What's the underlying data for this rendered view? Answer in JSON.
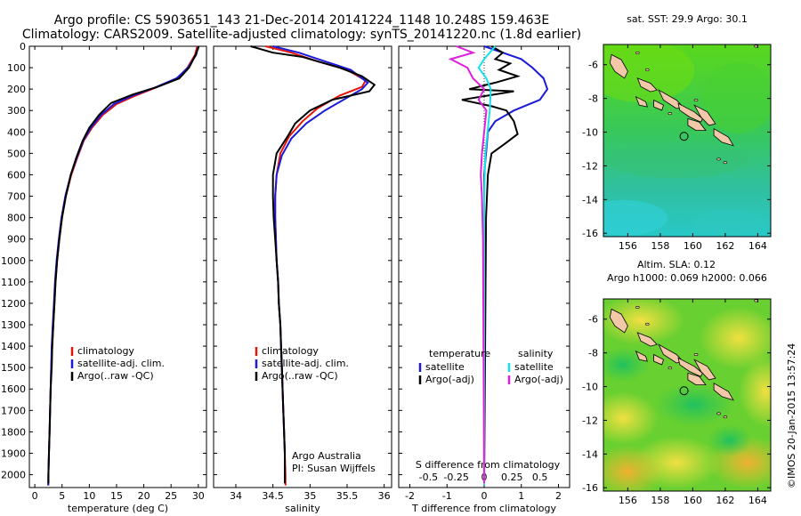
{
  "header": {
    "line1": "Argo profile: CS 5903651_143 21-Dec-2014 20141224_1148 10.248S 159.463E",
    "line2": "Climatology: CARS2009. Satellite-adjusted climatology: synTS_20141220.nc (1.8d earlier)"
  },
  "colors": {
    "climatology": "#e8140c",
    "satellite": "#1a1ad8",
    "argo": "#000000",
    "sat_diff": "#18e0e8",
    "argo_diff": "#e020e0"
  },
  "depth_axis": {
    "ticks": [
      0,
      100,
      200,
      300,
      400,
      500,
      600,
      700,
      800,
      900,
      1000,
      1100,
      1200,
      1300,
      1400,
      1500,
      1600,
      1700,
      1800,
      1900,
      2000
    ],
    "range": [
      0,
      2060
    ]
  },
  "chart_data": [
    {
      "type": "line",
      "id": "temperature",
      "xlabel": "temperature (deg C)",
      "ylabel": "",
      "xlim": [
        -1,
        31.5
      ],
      "xticks": [
        0,
        5,
        10,
        15,
        20,
        25,
        30
      ],
      "legend": [
        "climatology",
        "satellite-adj. clim.",
        "Argo(..raw -QC)"
      ],
      "series": [
        {
          "name": "climatology",
          "color": "#e8140c",
          "points": [
            [
              29.8,
              0
            ],
            [
              29.4,
              40
            ],
            [
              28.0,
              100
            ],
            [
              26.2,
              150
            ],
            [
              22.0,
              195
            ],
            [
              18.5,
              230
            ],
            [
              15.0,
              270
            ],
            [
              12.5,
              320
            ],
            [
              10.5,
              380
            ],
            [
              9.0,
              440
            ],
            [
              7.8,
              520
            ],
            [
              6.7,
              600
            ],
            [
              5.7,
              700
            ],
            [
              5.0,
              800
            ],
            [
              4.5,
              900
            ],
            [
              4.1,
              1000
            ],
            [
              3.8,
              1100
            ],
            [
              3.6,
              1200
            ],
            [
              3.4,
              1300
            ],
            [
              3.2,
              1400
            ],
            [
              3.0,
              1500
            ],
            [
              2.9,
              1600
            ],
            [
              2.8,
              1700
            ],
            [
              2.7,
              1800
            ],
            [
              2.6,
              1900
            ],
            [
              2.5,
              2000
            ],
            [
              2.5,
              2050
            ]
          ]
        },
        {
          "name": "satellite-adj. clim.",
          "color": "#1a1ad8",
          "points": [
            [
              30.0,
              0
            ],
            [
              29.6,
              40
            ],
            [
              28.1,
              100
            ],
            [
              26.0,
              150
            ],
            [
              21.8,
              195
            ],
            [
              18.0,
              230
            ],
            [
              14.5,
              270
            ],
            [
              12.2,
              320
            ],
            [
              10.3,
              380
            ],
            [
              8.9,
              440
            ],
            [
              7.7,
              520
            ],
            [
              6.6,
              600
            ],
            [
              5.6,
              700
            ],
            [
              4.9,
              800
            ],
            [
              4.4,
              900
            ],
            [
              4.0,
              1000
            ],
            [
              3.7,
              1100
            ],
            [
              3.5,
              1200
            ],
            [
              3.3,
              1300
            ],
            [
              3.1,
              1400
            ],
            [
              3.0,
              1500
            ],
            [
              2.9,
              1600
            ],
            [
              2.8,
              1700
            ],
            [
              2.7,
              1800
            ],
            [
              2.6,
              1900
            ],
            [
              2.5,
              2000
            ],
            [
              2.45,
              2050
            ]
          ]
        },
        {
          "name": "Argo(..raw -QC)",
          "color": "#000000",
          "points": [
            [
              30.1,
              0
            ],
            [
              29.5,
              40
            ],
            [
              28.3,
              100
            ],
            [
              26.5,
              150
            ],
            [
              22.5,
              190
            ],
            [
              18.0,
              225
            ],
            [
              14.0,
              265
            ],
            [
              11.8,
              320
            ],
            [
              10.0,
              380
            ],
            [
              8.8,
              440
            ],
            [
              7.6,
              520
            ],
            [
              6.6,
              600
            ],
            [
              5.7,
              700
            ],
            [
              5.0,
              800
            ],
            [
              4.5,
              900
            ],
            [
              4.1,
              1000
            ],
            [
              3.8,
              1100
            ],
            [
              3.6,
              1200
            ],
            [
              3.4,
              1300
            ],
            [
              3.2,
              1400
            ],
            [
              3.1,
              1500
            ],
            [
              2.9,
              1600
            ],
            [
              2.8,
              1700
            ],
            [
              2.7,
              1800
            ],
            [
              2.6,
              1900
            ],
            [
              2.5,
              2000
            ],
            [
              2.5,
              2040
            ]
          ]
        }
      ]
    },
    {
      "type": "line",
      "id": "salinity",
      "xlabel": "salinity",
      "xlim": [
        33.7,
        36.1
      ],
      "xticks": [
        34,
        34.5,
        35,
        35.5,
        36
      ],
      "xticklabels": [
        "34",
        "34.5",
        "35",
        "35.5",
        "36"
      ],
      "legend": [
        "climatology",
        "satellite-adj. clim.",
        "Argo(..raw -QC)"
      ],
      "annotation": [
        "Argo Australia",
        "PI: Susan Wijffels"
      ],
      "series": [
        {
          "name": "climatology",
          "color": "#e8140c",
          "points": [
            [
              34.4,
              0
            ],
            [
              34.75,
              30
            ],
            [
              35.1,
              70
            ],
            [
              35.5,
              110
            ],
            [
              35.75,
              160
            ],
            [
              35.7,
              190
            ],
            [
              35.4,
              230
            ],
            [
              35.1,
              290
            ],
            [
              34.9,
              350
            ],
            [
              34.72,
              420
            ],
            [
              34.6,
              500
            ],
            [
              34.55,
              600
            ],
            [
              34.53,
              700
            ],
            [
              34.53,
              800
            ],
            [
              34.54,
              900
            ],
            [
              34.55,
              1000
            ],
            [
              34.57,
              1100
            ],
            [
              34.58,
              1200
            ],
            [
              34.6,
              1300
            ],
            [
              34.61,
              1400
            ],
            [
              34.62,
              1500
            ],
            [
              34.63,
              1600
            ],
            [
              34.64,
              1700
            ],
            [
              34.65,
              1800
            ],
            [
              34.66,
              1900
            ],
            [
              34.67,
              2000
            ],
            [
              34.67,
              2050
            ]
          ]
        },
        {
          "name": "satellite-adj. clim.",
          "color": "#1a1ad8",
          "points": [
            [
              34.5,
              0
            ],
            [
              34.85,
              30
            ],
            [
              35.2,
              70
            ],
            [
              35.55,
              110
            ],
            [
              35.78,
              170
            ],
            [
              35.7,
              200
            ],
            [
              35.5,
              240
            ],
            [
              35.2,
              300
            ],
            [
              34.95,
              360
            ],
            [
              34.75,
              430
            ],
            [
              34.62,
              510
            ],
            [
              34.55,
              600
            ],
            [
              34.53,
              700
            ],
            [
              34.53,
              800
            ],
            [
              34.54,
              900
            ],
            [
              34.55,
              1000
            ],
            [
              34.57,
              1100
            ],
            [
              34.58,
              1200
            ],
            [
              34.6,
              1300
            ],
            [
              34.61,
              1400
            ],
            [
              34.62,
              1500
            ],
            [
              34.63,
              1600
            ],
            [
              34.64,
              1700
            ],
            [
              34.65,
              1800
            ],
            [
              34.66,
              1900
            ],
            [
              34.66,
              2000
            ],
            [
              34.66,
              2040
            ]
          ]
        },
        {
          "name": "Argo(..raw -QC)",
          "color": "#000000",
          "points": [
            [
              34.2,
              0
            ],
            [
              34.5,
              30
            ],
            [
              34.9,
              50
            ],
            [
              35.1,
              70
            ],
            [
              35.4,
              100
            ],
            [
              35.7,
              140
            ],
            [
              35.87,
              180
            ],
            [
              35.8,
              210
            ],
            [
              35.3,
              250
            ],
            [
              35.0,
              300
            ],
            [
              34.8,
              360
            ],
            [
              34.7,
              420
            ],
            [
              34.55,
              500
            ],
            [
              34.5,
              600
            ],
            [
              34.5,
              700
            ],
            [
              34.51,
              800
            ],
            [
              34.53,
              900
            ],
            [
              34.55,
              1000
            ],
            [
              34.57,
              1100
            ],
            [
              34.58,
              1200
            ],
            [
              34.6,
              1300
            ],
            [
              34.61,
              1400
            ],
            [
              34.62,
              1500
            ],
            [
              34.63,
              1600
            ],
            [
              34.64,
              1700
            ],
            [
              34.65,
              1800
            ],
            [
              34.66,
              1900
            ],
            [
              34.66,
              2000
            ],
            [
              34.66,
              2040
            ]
          ]
        }
      ]
    },
    {
      "type": "line",
      "id": "difference",
      "xlabel": "T difference from climatology",
      "xlim": [
        -2.3,
        2.3
      ],
      "xticks": [
        -2,
        -1,
        0,
        1,
        2
      ],
      "xticklabels": [
        "-2",
        "-1",
        "0",
        "1",
        "2"
      ],
      "top_xlabel": "S difference from climatology",
      "top_xticks": [
        -0.5,
        -0.25,
        0,
        0.25,
        0.5
      ],
      "top_xticklabels": [
        "-0.5",
        "-0.25",
        "0",
        "0.25",
        "0.5"
      ],
      "legend_headers": [
        "temperature",
        "salinity"
      ],
      "legend": [
        "satellite",
        "Argo(-adj)",
        "satellite",
        "Argo(-adj)"
      ],
      "series": [
        {
          "name": "temperature satellite",
          "color": "#1a1ad8",
          "points": [
            [
              0.0,
              0
            ],
            [
              0.5,
              30
            ],
            [
              1.0,
              60
            ],
            [
              1.3,
              100
            ],
            [
              1.6,
              150
            ],
            [
              1.7,
              200
            ],
            [
              1.5,
              250
            ],
            [
              0.8,
              300
            ],
            [
              0.3,
              350
            ],
            [
              0.1,
              400
            ],
            [
              0.05,
              500
            ],
            [
              0.0,
              600
            ],
            [
              0.0,
              800
            ],
            [
              0.0,
              1000
            ],
            [
              0.0,
              2050
            ]
          ]
        },
        {
          "name": "temperature Argo(-adj)",
          "color": "#000000",
          "points": [
            [
              0.2,
              0
            ],
            [
              0.5,
              30
            ],
            [
              0.3,
              60
            ],
            [
              0.7,
              80
            ],
            [
              0.4,
              110
            ],
            [
              0.9,
              140
            ],
            [
              0.3,
              170
            ],
            [
              -0.4,
              200
            ],
            [
              0.8,
              210
            ],
            [
              -0.6,
              250
            ],
            [
              0.2,
              280
            ],
            [
              0.6,
              300
            ],
            [
              0.8,
              350
            ],
            [
              0.9,
              410
            ],
            [
              0.6,
              450
            ],
            [
              0.2,
              500
            ],
            [
              0.1,
              600
            ],
            [
              0.05,
              800
            ],
            [
              0.0,
              2040
            ]
          ]
        },
        {
          "name": "salinity satellite",
          "color": "#18e0e8",
          "points": [
            [
              0.1,
              0
            ],
            [
              0.05,
              30
            ],
            [
              0.0,
              60
            ],
            [
              -0.05,
              100
            ],
            [
              0.02,
              150
            ],
            [
              0.06,
              200
            ],
            [
              0.05,
              300
            ],
            [
              0.03,
              400
            ],
            [
              0.01,
              500
            ],
            [
              0.0,
              700
            ],
            [
              0.0,
              2050
            ]
          ]
        },
        {
          "name": "salinity Argo(-adj)",
          "color": "#e020e0",
          "points": [
            [
              -0.25,
              0
            ],
            [
              -0.1,
              30
            ],
            [
              -0.3,
              60
            ],
            [
              -0.15,
              100
            ],
            [
              -0.1,
              150
            ],
            [
              0.0,
              200
            ],
            [
              -0.05,
              250
            ],
            [
              0.02,
              300
            ],
            [
              0.0,
              400
            ],
            [
              -0.02,
              500
            ],
            [
              -0.03,
              600
            ],
            [
              -0.02,
              700
            ],
            [
              -0.01,
              900
            ],
            [
              0.0,
              2040
            ]
          ]
        }
      ]
    }
  ],
  "maps": [
    {
      "title": "sat. SST: 29.9 Argo: 30.1",
      "lon_range": [
        154.5,
        164.8
      ],
      "lat_range": [
        -16.2,
        -4.8
      ],
      "xticks": [
        156,
        158,
        160,
        162,
        164
      ],
      "yticks": [
        -6,
        -8,
        -10,
        -12,
        -14,
        -16
      ],
      "marker": [
        159.463,
        -10.248
      ]
    },
    {
      "title_line1": "Altim. SLA: 0.12",
      "title_line2": "Argo h1000: 0.069 h2000: 0.066",
      "lon_range": [
        154.5,
        164.8
      ],
      "lat_range": [
        -16.2,
        -4.8
      ],
      "xticks": [
        156,
        158,
        160,
        162,
        164
      ],
      "yticks": [
        -6,
        -8,
        -10,
        -12,
        -14,
        -16
      ],
      "marker": [
        159.463,
        -10.248
      ]
    }
  ],
  "credit": "©IMOS 20-Jan-2015 13:57:24"
}
